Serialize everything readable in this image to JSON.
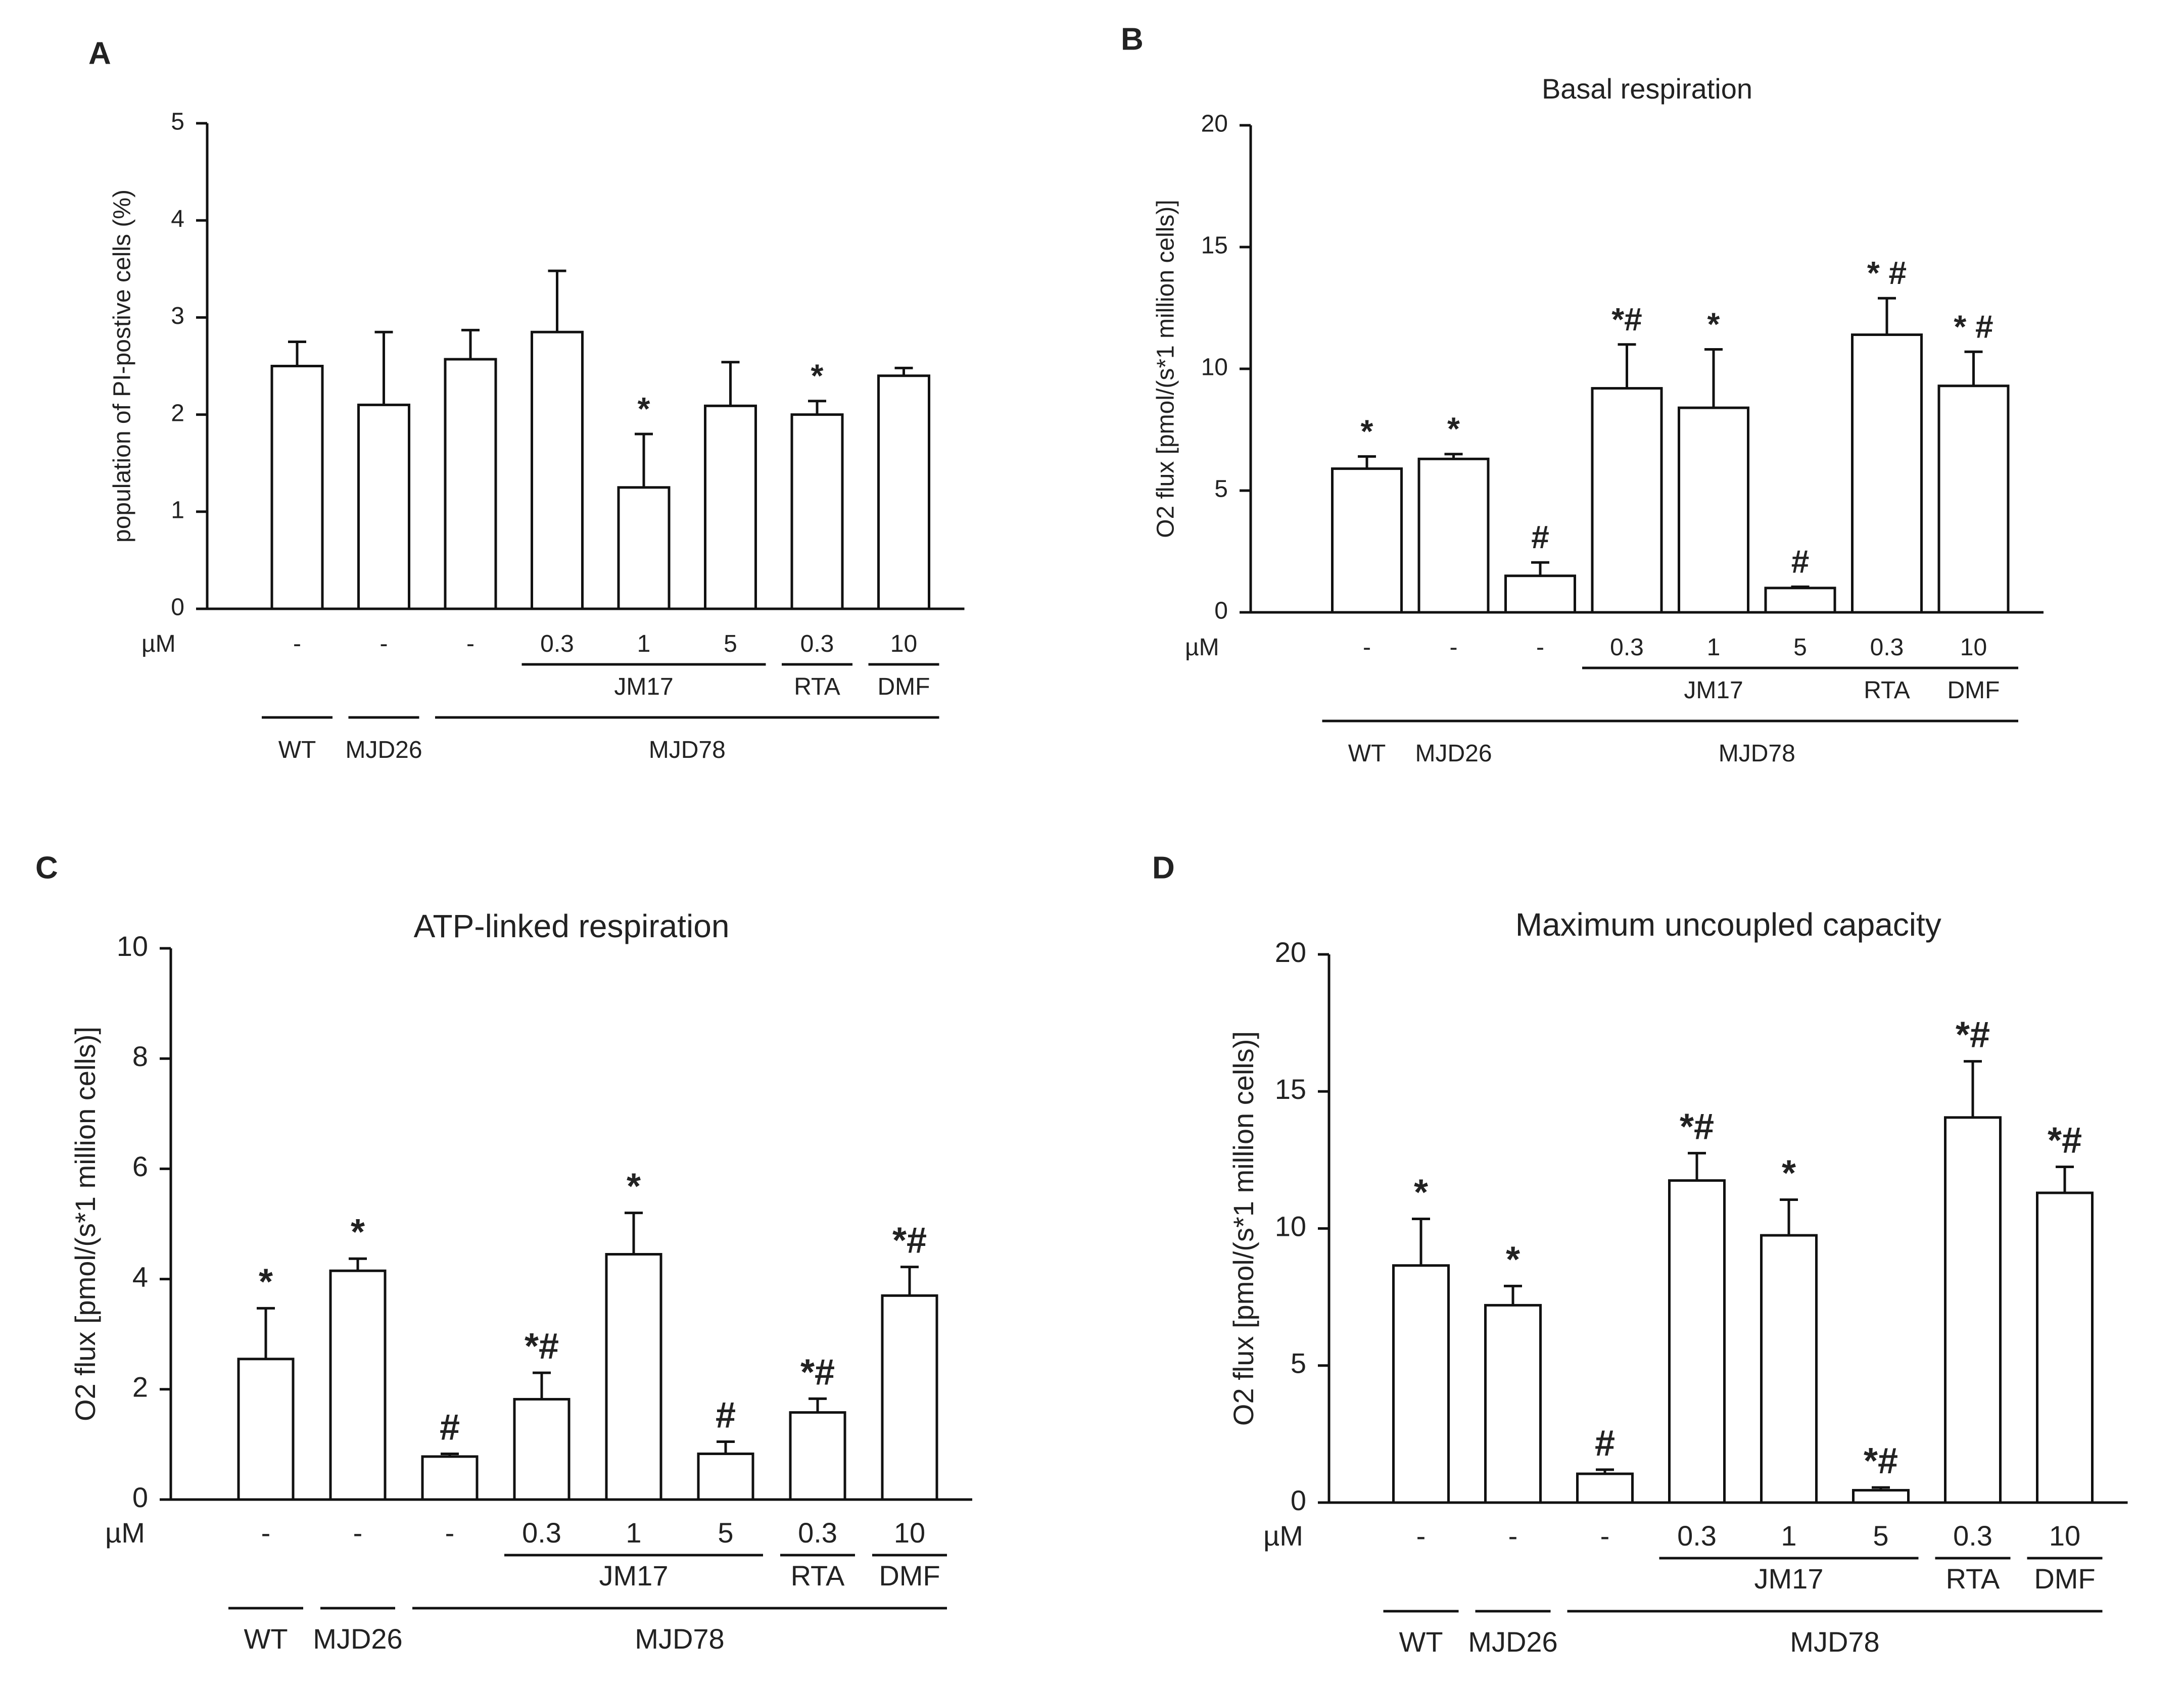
{
  "figure": {
    "panels": [
      "A",
      "B",
      "C",
      "D"
    ]
  },
  "chart_data": [
    {
      "panel": "A",
      "type": "bar",
      "title": "",
      "xlabel": "",
      "ylabel": "population of PI-postive cells (%)",
      "ylim": [
        0,
        5
      ],
      "yticks": [
        0,
        1,
        2,
        3,
        4,
        5
      ],
      "grid": false,
      "categories": [
        "WT",
        "MJD26",
        "MJD78",
        "MJD78 JM17 0.3",
        "MJD78 JM17 1",
        "MJD78 JM17 5",
        "MJD78 RTA 0.3",
        "MJD78 DMF 10"
      ],
      "values": [
        2.5,
        2.1,
        2.57,
        2.85,
        1.25,
        2.09,
        2.0,
        2.4
      ],
      "errors": [
        0.25,
        0.75,
        0.3,
        0.63,
        0.55,
        0.45,
        0.14,
        0.08
      ],
      "sig": [
        "",
        "",
        "",
        "",
        "*",
        "",
        "*",
        ""
      ],
      "unit_label": "µM",
      "doses": [
        "-",
        "-",
        "-",
        "0.3",
        "1",
        "5",
        "0.3",
        "10"
      ],
      "group_labels": {
        "wt": "WT",
        "mjd26": "MJD26",
        "mjd78": "MJD78",
        "jm17": "JM17",
        "rta": "RTA",
        "dmf": "DMF"
      }
    },
    {
      "panel": "B",
      "type": "bar",
      "title": "Basal respiration",
      "xlabel": "",
      "ylabel": "O2 flux [pmol/(s*1 million cells)]",
      "ylim": [
        0,
        20
      ],
      "yticks": [
        0,
        5,
        10,
        15,
        20
      ],
      "grid": false,
      "categories": [
        "WT",
        "MJD26",
        "MJD78",
        "MJD78 JM17 0.3",
        "MJD78 JM17 1",
        "MJD78 JM17 5",
        "MJD78 RTA 0.3",
        "MJD78 DMF 10"
      ],
      "values": [
        5.9,
        6.3,
        1.5,
        9.2,
        8.4,
        1.0,
        11.4,
        9.3
      ],
      "errors": [
        0.5,
        0.2,
        0.55,
        1.8,
        2.4,
        0.05,
        1.5,
        1.4
      ],
      "sig": [
        "*",
        "*",
        "#",
        "*#",
        "*",
        "#",
        "* #",
        "* #"
      ],
      "unit_label": "µM",
      "doses": [
        "-",
        "-",
        "-",
        "0.3",
        "1",
        "5",
        "0.3",
        "10"
      ],
      "group_labels": {
        "wt": "WT",
        "mjd26": "MJD26",
        "mjd78": "MJD78",
        "jm17": "JM17",
        "rta": "RTA",
        "dmf": "DMF"
      }
    },
    {
      "panel": "C",
      "type": "bar",
      "title": "ATP-linked respiration",
      "xlabel": "",
      "ylabel": "O2 flux [pmol/(s*1 million cells)]",
      "ylim": [
        0,
        10
      ],
      "yticks": [
        0,
        2,
        4,
        6,
        8,
        10
      ],
      "grid": false,
      "categories": [
        "WT",
        "MJD26",
        "MJD78",
        "MJD78 JM17 0.3",
        "MJD78 JM17 1",
        "MJD78 JM17 5",
        "MJD78 RTA 0.3",
        "MJD78 DMF 10"
      ],
      "values": [
        2.55,
        4.15,
        0.78,
        1.82,
        4.45,
        0.83,
        1.58,
        3.7
      ],
      "errors": [
        0.92,
        0.22,
        0.05,
        0.48,
        0.75,
        0.22,
        0.25,
        0.52
      ],
      "sig": [
        "*",
        "*",
        "#",
        "*#",
        "*",
        "#",
        "*#",
        "*#"
      ],
      "unit_label": "µM",
      "doses": [
        "-",
        "-",
        "-",
        "0.3",
        "1",
        "5",
        "0.3",
        "10"
      ],
      "group_labels": {
        "wt": "WT",
        "mjd26": "MJD26",
        "mjd78": "MJD78",
        "jm17": "JM17",
        "rta": "RTA",
        "dmf": "DMF"
      }
    },
    {
      "panel": "D",
      "type": "bar",
      "title": "Maximum uncoupled capacity",
      "xlabel": "",
      "ylabel": "O2 flux [pmol/(s*1 million cells)]",
      "ylim": [
        0,
        20
      ],
      "yticks": [
        0,
        5,
        10,
        15,
        20
      ],
      "grid": false,
      "categories": [
        "WT",
        "MJD26",
        "MJD78",
        "MJD78 JM17 0.3",
        "MJD78 JM17 1",
        "MJD78 JM17 5",
        "MJD78 RTA 0.3",
        "MJD78 DMF 10"
      ],
      "values": [
        8.65,
        7.2,
        1.05,
        11.75,
        9.75,
        0.45,
        14.05,
        11.3
      ],
      "errors": [
        1.7,
        0.7,
        0.15,
        1.0,
        1.3,
        0.1,
        2.05,
        0.95
      ],
      "sig": [
        "*",
        "*",
        "#",
        "*#",
        "*",
        "*#",
        "*#",
        "*#"
      ],
      "unit_label": "µM",
      "doses": [
        "-",
        "-",
        "-",
        "0.3",
        "1",
        "5",
        "0.3",
        "10"
      ],
      "group_labels": {
        "wt": "WT",
        "mjd26": "MJD26",
        "mjd78": "MJD78",
        "jm17": "JM17",
        "rta": "RTA",
        "dmf": "DMF"
      }
    }
  ]
}
